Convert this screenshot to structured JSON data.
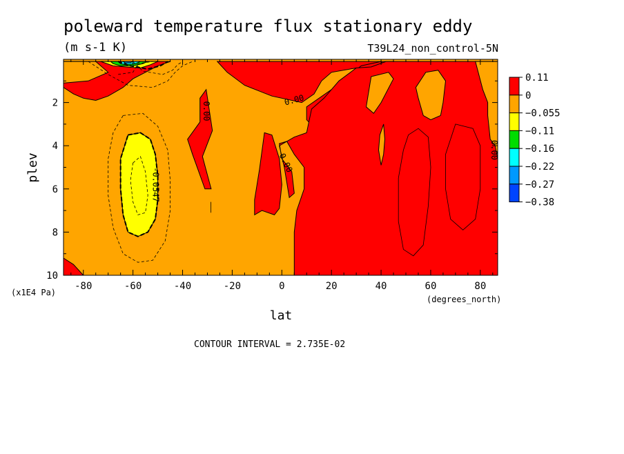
{
  "chart_data": {
    "type": "contour",
    "title": "poleward temperature flux stationary eddy",
    "units": "(m s-1 K)",
    "run_label": "T39L24_non_control-5N",
    "xlabel": "lat",
    "x_units": "(degrees_north)",
    "ylabel": "plev",
    "y_units": "(x1E4 Pa)",
    "xlim": [
      -88,
      87
    ],
    "ylim": [
      10,
      0
    ],
    "x_ticks": [
      -80,
      -60,
      -40,
      -20,
      0,
      20,
      40,
      60,
      80
    ],
    "y_ticks": [
      2,
      4,
      6,
      8,
      10
    ],
    "x_tick_labels": [
      "-80",
      "-60",
      "-40",
      "-20",
      "0",
      "20",
      "40",
      "60",
      "80"
    ],
    "y_tick_labels": [
      "2",
      "4",
      "6",
      "8",
      "10"
    ],
    "contour_interval_text": "CONTOUR INTERVAL = 2.735E-02",
    "contour_labels": [
      {
        "text": "0.00",
        "lat": -30.5,
        "plev": 2.4,
        "angle": 90
      },
      {
        "text": "0.00",
        "lat": 5,
        "plev": 1.9,
        "angle": -15
      },
      {
        "text": "0.00",
        "lat": 1.5,
        "plev": 4.8,
        "angle": 65
      },
      {
        "text": "0.00",
        "lat": 85.5,
        "plev": 4.2,
        "angle": 90
      },
      {
        "text": "-0.0547",
        "lat": -51,
        "plev": 5.8,
        "angle": 90
      }
    ],
    "colorbar": {
      "levels": [
        "0.11",
        "0",
        "−0.055",
        "−0.11",
        "−0.16",
        "−0.22",
        "−0.27",
        "−0.38"
      ],
      "colors": [
        "#ff0000",
        "#ffa500",
        "#ffff00",
        "#00dd00",
        "#00ffff",
        "#0099ff",
        "#0044ff"
      ]
    },
    "fills": [
      {
        "level": "red",
        "color": "#ff0000",
        "lat_plev": [
          [
            -88,
            0.1
          ],
          [
            -77,
            0.1
          ],
          [
            -72,
            0.3
          ],
          [
            -70,
            0.6
          ],
          [
            -78,
            0.9
          ],
          [
            -82,
            1.2
          ],
          [
            -87,
            1.3
          ],
          [
            -88,
            1.3
          ]
        ]
      },
      {
        "level": "red",
        "color": "#ff0000",
        "lat_plev": [
          [
            -88,
            1.3
          ],
          [
            -84,
            1.6
          ],
          [
            -80,
            1.8
          ],
          [
            -75,
            1.9
          ],
          [
            -70,
            1.7
          ],
          [
            -64,
            1.3
          ],
          [
            -60,
            0.9
          ],
          [
            -55,
            0.6
          ],
          [
            -50,
            0.3
          ],
          [
            -45,
            0.1
          ],
          [
            -88,
            0.1
          ]
        ]
      },
      {
        "level": "red",
        "color": "#ff0000",
        "lat_plev": [
          [
            -30.5,
            1.4
          ],
          [
            -28,
            3.3
          ],
          [
            -32,
            4.5
          ],
          [
            -28.5,
            6.0
          ],
          [
            -31,
            6.0
          ],
          [
            -36,
            4.4
          ],
          [
            -38,
            3.7
          ],
          [
            -33,
            2.9
          ],
          [
            -33,
            1.8
          ]
        ]
      },
      {
        "level": "red",
        "color": "#ff0000",
        "lat_plev": [
          [
            -26,
            0.1
          ],
          [
            -22,
            0.6
          ],
          [
            -15,
            1.2
          ],
          [
            -4,
            1.7
          ],
          [
            8,
            2.0
          ],
          [
            13,
            1.6
          ],
          [
            16,
            1.0
          ],
          [
            20,
            0.6
          ],
          [
            30,
            0.4
          ],
          [
            37,
            0.4
          ],
          [
            42,
            0.15
          ],
          [
            45,
            0.1
          ]
        ]
      },
      {
        "level": "red",
        "color": "#ff0000",
        "lat_plev": [
          [
            40,
            0.1
          ],
          [
            45,
            0.8
          ],
          [
            53,
            1.1
          ],
          [
            55,
            1.3
          ],
          [
            48,
            1.9
          ],
          [
            40,
            2.6
          ],
          [
            35,
            3.0
          ],
          [
            25,
            3.5
          ],
          [
            16,
            3.5
          ],
          [
            10,
            2.8
          ],
          [
            10,
            2.2
          ],
          [
            20,
            1.4
          ],
          [
            32,
            0.3
          ],
          [
            40,
            0.1
          ]
        ]
      },
      {
        "level": "red",
        "color": "#ff0000",
        "lat_plev": [
          [
            42,
            0.1
          ],
          [
            87,
            0.1
          ],
          [
            87,
            10
          ],
          [
            5,
            10
          ],
          [
            5,
            8.0
          ],
          [
            6,
            7.0
          ],
          [
            9,
            6.0
          ],
          [
            9,
            5.0
          ],
          [
            5,
            4.4
          ],
          [
            2,
            3.8
          ],
          [
            -1,
            3.9
          ],
          [
            0,
            4.6
          ],
          [
            4,
            5.2
          ],
          [
            5,
            6.2
          ],
          [
            3,
            6.4
          ],
          [
            1,
            5.0
          ],
          [
            -1,
            4.0
          ],
          [
            5,
            3.6
          ],
          [
            10,
            3.4
          ],
          [
            12,
            2.3
          ],
          [
            17,
            1.8
          ],
          [
            23,
            1.0
          ],
          [
            30,
            0.4
          ],
          [
            36,
            0.35
          ],
          [
            42,
            0.1
          ]
        ]
      },
      {
        "level": "red",
        "color": "#ff0000",
        "lat_plev": [
          [
            -7,
            3.4
          ],
          [
            -4,
            3.5
          ],
          [
            -1,
            4.6
          ],
          [
            0,
            5.8
          ],
          [
            -1,
            6.9
          ],
          [
            -3,
            7.2
          ],
          [
            -8,
            7.0
          ],
          [
            -11,
            7.2
          ],
          [
            -11,
            6.5
          ],
          [
            -9,
            5.1
          ]
        ]
      },
      {
        "level": "red",
        "color": "#ff0000",
        "lat_plev": [
          [
            -88,
            9.2
          ],
          [
            -84,
            9.5
          ],
          [
            -80,
            10
          ],
          [
            -88,
            10
          ]
        ]
      },
      {
        "level": "orange",
        "color": "#ffa500",
        "lat_plev": [
          [
            36,
            0.8
          ],
          [
            43,
            0.6
          ],
          [
            45,
            0.9
          ],
          [
            40,
            2.0
          ],
          [
            37,
            2.5
          ],
          [
            34,
            2.2
          ]
        ]
      },
      {
        "level": "orange",
        "color": "#ffa500",
        "lat_plev": [
          [
            54,
            1.3
          ],
          [
            58,
            0.6
          ],
          [
            63,
            0.5
          ],
          [
            66,
            1.0
          ],
          [
            65,
            2.0
          ],
          [
            64,
            2.6
          ],
          [
            60,
            2.8
          ],
          [
            57,
            2.6
          ],
          [
            55,
            1.8
          ]
        ]
      },
      {
        "level": "orange",
        "color": "#ffa500",
        "lat_plev": [
          [
            39.5,
            3.5
          ],
          [
            41,
            3.0
          ],
          [
            41.5,
            3.7
          ],
          [
            41,
            4.4
          ],
          [
            40,
            4.9
          ],
          [
            39,
            4.2
          ]
        ]
      },
      {
        "level": "orange",
        "color": "#ffa500",
        "lat_plev": [
          [
            78,
            0.1
          ],
          [
            84,
            0.1
          ],
          [
            87,
            0.1
          ],
          [
            87,
            4.6
          ],
          [
            86,
            4.0
          ],
          [
            84,
            3.7
          ],
          [
            83,
            2.6
          ],
          [
            83,
            2.0
          ],
          [
            81,
            1.4
          ]
        ]
      },
      {
        "level": "orange",
        "color": "#ffa500",
        "lat_plev": [
          [
            -88,
            0.1
          ],
          [
            -75,
            0.1
          ],
          [
            -70,
            0.6
          ],
          [
            -78,
            1.0
          ],
          [
            -88,
            1.1
          ]
        ]
      },
      {
        "level": "yellow",
        "color": "#ffff00",
        "lat_plev": [
          [
            -62,
            3.5
          ],
          [
            -57,
            3.4
          ],
          [
            -53,
            3.7
          ],
          [
            -51,
            4.4
          ],
          [
            -50,
            5.4
          ],
          [
            -50,
            6.5
          ],
          [
            -51,
            7.4
          ],
          [
            -54,
            8.0
          ],
          [
            -58,
            8.2
          ],
          [
            -62,
            8.0
          ],
          [
            -64,
            7.2
          ],
          [
            -65,
            6.0
          ],
          [
            -65,
            4.6
          ]
        ]
      },
      {
        "level": "yellow",
        "color": "#ffff00",
        "lat_plev": [
          [
            -73,
            0.1
          ],
          [
            -50,
            0.1
          ],
          [
            -53,
            0.25
          ],
          [
            -57,
            0.4
          ],
          [
            -63,
            0.35
          ],
          [
            -68,
            0.3
          ]
        ]
      },
      {
        "level": "green",
        "color": "#00dd00",
        "lat_plev": [
          [
            -69,
            0.1
          ],
          [
            -54,
            0.1
          ],
          [
            -56,
            0.2
          ],
          [
            -60,
            0.3
          ],
          [
            -65,
            0.3
          ],
          [
            -68,
            0.2
          ]
        ]
      },
      {
        "level": "cyan",
        "color": "#00ffff",
        "lat_plev": [
          [
            -66,
            0.1
          ],
          [
            -57,
            0.1
          ],
          [
            -59,
            0.2
          ],
          [
            -63,
            0.25
          ],
          [
            -65,
            0.2
          ]
        ]
      },
      {
        "level": "blue",
        "color": "#0099ff",
        "lat_plev": [
          [
            -64,
            0.1
          ],
          [
            -60,
            0.1
          ],
          [
            -61,
            0.15
          ],
          [
            -63,
            0.17
          ]
        ]
      }
    ],
    "contours": [
      {
        "style": "thin-dashed",
        "lat_plev": [
          [
            -78,
            0.1
          ],
          [
            -70,
            0.7
          ],
          [
            -62,
            1.2
          ],
          [
            -52,
            1.3
          ],
          [
            -46,
            1.0
          ],
          [
            -43,
            0.6
          ],
          [
            -40,
            0.3
          ],
          [
            -36,
            0.1
          ]
        ]
      },
      {
        "style": "thin-dashed",
        "lat_plev": [
          [
            -60,
            0.1
          ],
          [
            -56,
            0.55
          ],
          [
            -48,
            0.7
          ],
          [
            -44,
            0.5
          ],
          [
            -42,
            0.25
          ],
          [
            -40,
            0.1
          ]
        ]
      },
      {
        "style": "thick-dashed",
        "lat_plev": [
          [
            -66,
            0.1
          ],
          [
            -61,
            0.3
          ],
          [
            -54,
            0.45
          ],
          [
            -49,
            0.3
          ],
          [
            -46,
            0.1
          ]
        ]
      },
      {
        "style": "thin-dashed",
        "lat_plev": [
          [
            -66,
            0.7
          ],
          [
            -60,
            0.6
          ],
          [
            -58,
            0.2
          ],
          [
            -52,
            0.1
          ]
        ]
      },
      {
        "style": "thick-dashed",
        "closed": true,
        "lat_plev": [
          [
            -62,
            3.5
          ],
          [
            -57,
            3.4
          ],
          [
            -53,
            3.7
          ],
          [
            -51,
            4.4
          ],
          [
            -50,
            5.4
          ],
          [
            -50,
            6.5
          ],
          [
            -51,
            7.4
          ],
          [
            -54,
            8.0
          ],
          [
            -58,
            8.2
          ],
          [
            -62,
            8.0
          ],
          [
            -64,
            7.2
          ],
          [
            -65,
            6.0
          ],
          [
            -65,
            4.6
          ]
        ]
      },
      {
        "style": "thin-dashed",
        "closed": true,
        "lat_plev": [
          [
            -64,
            2.6
          ],
          [
            -56,
            2.5
          ],
          [
            -50,
            3.1
          ],
          [
            -46,
            4.2
          ],
          [
            -45,
            5.6
          ],
          [
            -45,
            7.0
          ],
          [
            -47,
            8.4
          ],
          [
            -52,
            9.3
          ],
          [
            -58,
            9.4
          ],
          [
            -64,
            9.0
          ],
          [
            -68,
            7.8
          ],
          [
            -70,
            6.3
          ],
          [
            -70,
            4.6
          ],
          [
            -68,
            3.4
          ]
        ]
      },
      {
        "style": "thin-dashed",
        "closed": true,
        "lat_plev": [
          [
            -60,
            4.8
          ],
          [
            -57,
            4.5
          ],
          [
            -55,
            5.2
          ],
          [
            -54,
            6.3
          ],
          [
            -55,
            7.1
          ],
          [
            -58,
            7.2
          ],
          [
            -60,
            6.6
          ],
          [
            -61,
            5.6
          ]
        ]
      },
      {
        "style": "thin-solid",
        "closed": true,
        "lat_plev": [
          [
            51,
            3.5
          ],
          [
            55,
            3.2
          ],
          [
            59,
            3.6
          ],
          [
            60,
            5.0
          ],
          [
            59,
            6.8
          ],
          [
            57,
            8.6
          ],
          [
            53,
            9.1
          ],
          [
            49,
            8.8
          ],
          [
            47,
            7.5
          ],
          [
            47,
            5.5
          ],
          [
            49,
            4.2
          ]
        ]
      },
      {
        "style": "thin-solid",
        "closed": true,
        "lat_plev": [
          [
            70,
            3.0
          ],
          [
            77,
            3.2
          ],
          [
            80,
            4.0
          ],
          [
            80,
            6.0
          ],
          [
            78,
            7.4
          ],
          [
            73,
            7.9
          ],
          [
            68,
            7.4
          ],
          [
            66,
            6.0
          ],
          [
            66,
            4.4
          ]
        ]
      },
      {
        "style": "thin-solid",
        "lat_plev": [
          [
            -28.6,
            6.6
          ],
          [
            -28.6,
            7.1
          ]
        ]
      }
    ]
  }
}
